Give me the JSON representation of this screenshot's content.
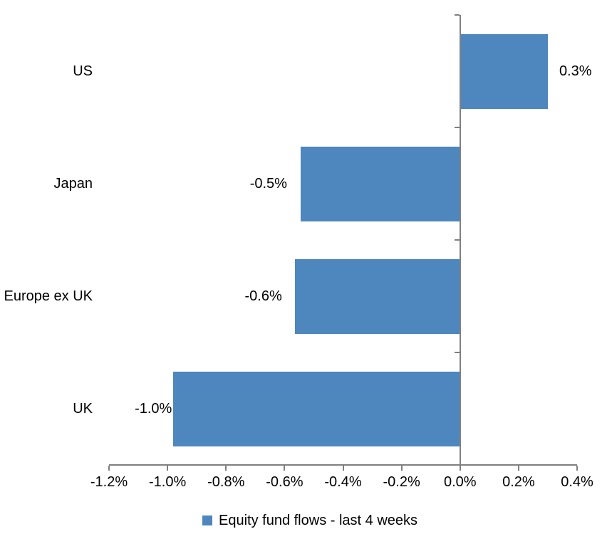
{
  "chart_data": {
    "type": "bar",
    "orientation": "horizontal",
    "title": "",
    "xlabel": "",
    "ylabel": "",
    "categories": [
      "US",
      "Japan",
      "Europe ex UK",
      "UK"
    ],
    "values": [
      0.3,
      -0.5,
      -0.6,
      -1.0
    ],
    "value_labels": [
      "0.3%",
      "-0.5%",
      "-0.6%",
      "-1.0%"
    ],
    "plotted_values": [
      0.3,
      -0.545,
      -0.565,
      -0.98
    ],
    "series_name": "Equity fund flows - last 4 weeks",
    "xlim": [
      -1.2,
      0.4
    ],
    "x_ticks": [
      -1.2,
      -1.0,
      -0.8,
      -0.6,
      -0.4,
      -0.2,
      0.0,
      0.2,
      0.4
    ],
    "x_tick_labels": [
      "-1.2%",
      "-1.0%",
      "-0.8%",
      "-0.6%",
      "-0.4%",
      "-0.2%",
      "0.0%",
      "0.2%",
      "0.4%"
    ],
    "grid": false,
    "legend_position": "bottom",
    "colors": {
      "bar": "#4E86BE",
      "axis": "#808080",
      "text": "#000000",
      "background": "#FFFFFF"
    }
  }
}
